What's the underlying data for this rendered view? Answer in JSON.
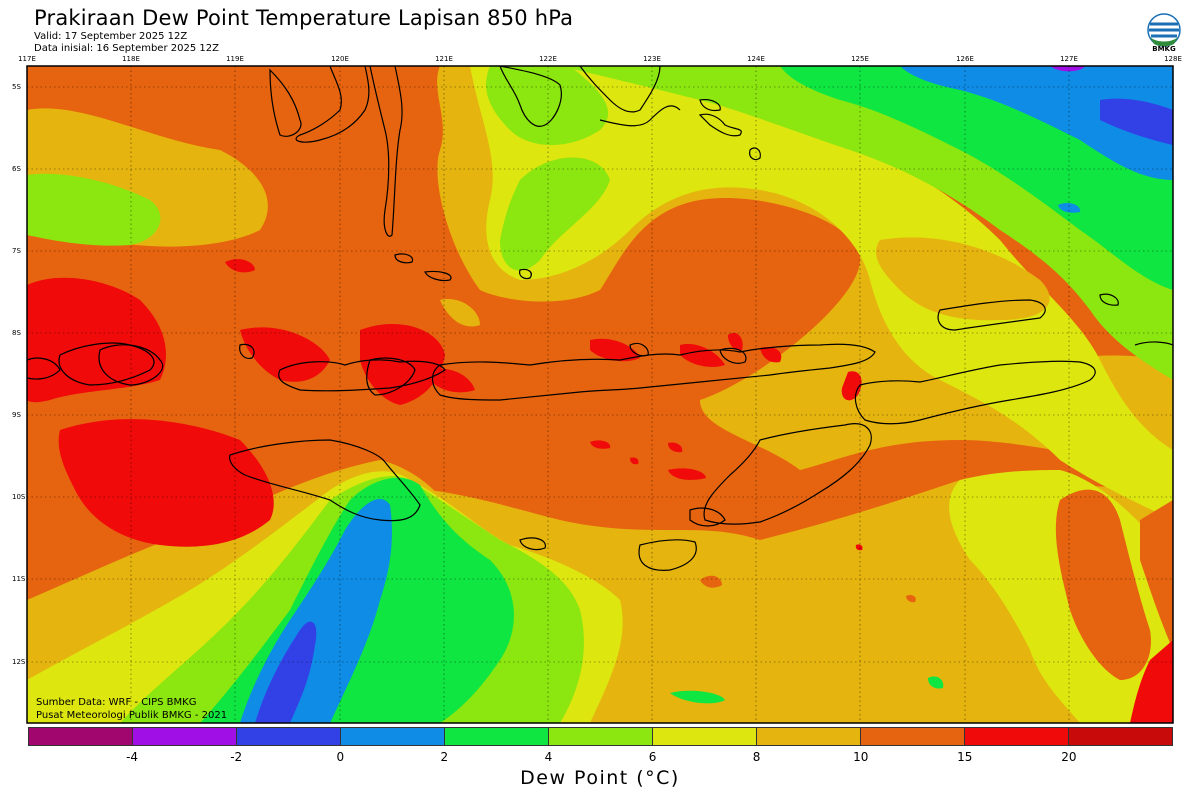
{
  "header": {
    "title": "Prakiraan Dew Point Temperature Lapisan 850 hPa",
    "valid": "Valid: 17 September 2025 12Z",
    "initial": "Data inisial: 16 September 2025 12Z"
  },
  "logo": {
    "text": "BMKG",
    "icon": "bmkg-logo"
  },
  "map": {
    "lon_labels": [
      "117E",
      "118E",
      "119E",
      "120E",
      "121E",
      "122E",
      "123E",
      "124E",
      "125E",
      "126E",
      "127E",
      "128E"
    ],
    "lat_labels": [
      "5S",
      "6S",
      "7S",
      "8S",
      "9S",
      "10S",
      "11S",
      "12S"
    ],
    "grid": true,
    "palette": {
      "orange": "#e6640f",
      "red": "#f00a0a",
      "amber": "#e6b40f",
      "yellow": "#dde60f",
      "lime": "#8ce60f",
      "green": "#0fe641",
      "blue": "#0f8ce6",
      "darkblue": "#3241e6",
      "violet": "#a00fe6",
      "coast": "#000000"
    }
  },
  "credits": {
    "source": "Sumber Data: WRF - CIPS BMKG",
    "org": "Pusat Meteorologi Publik BMKG - 2021"
  },
  "colorbar": {
    "title": "Dew Point (°C)",
    "colors": [
      "#a0066e",
      "#a00fe6",
      "#3241e6",
      "#0f8ce6",
      "#0fe641",
      "#8ce60f",
      "#dde60f",
      "#e6b40f",
      "#e6640f",
      "#f00a0a",
      "#c80a0a"
    ],
    "ticks": [
      "-4",
      "-2",
      "0",
      "2",
      "4",
      "6",
      "8",
      "10",
      "15",
      "20"
    ]
  }
}
